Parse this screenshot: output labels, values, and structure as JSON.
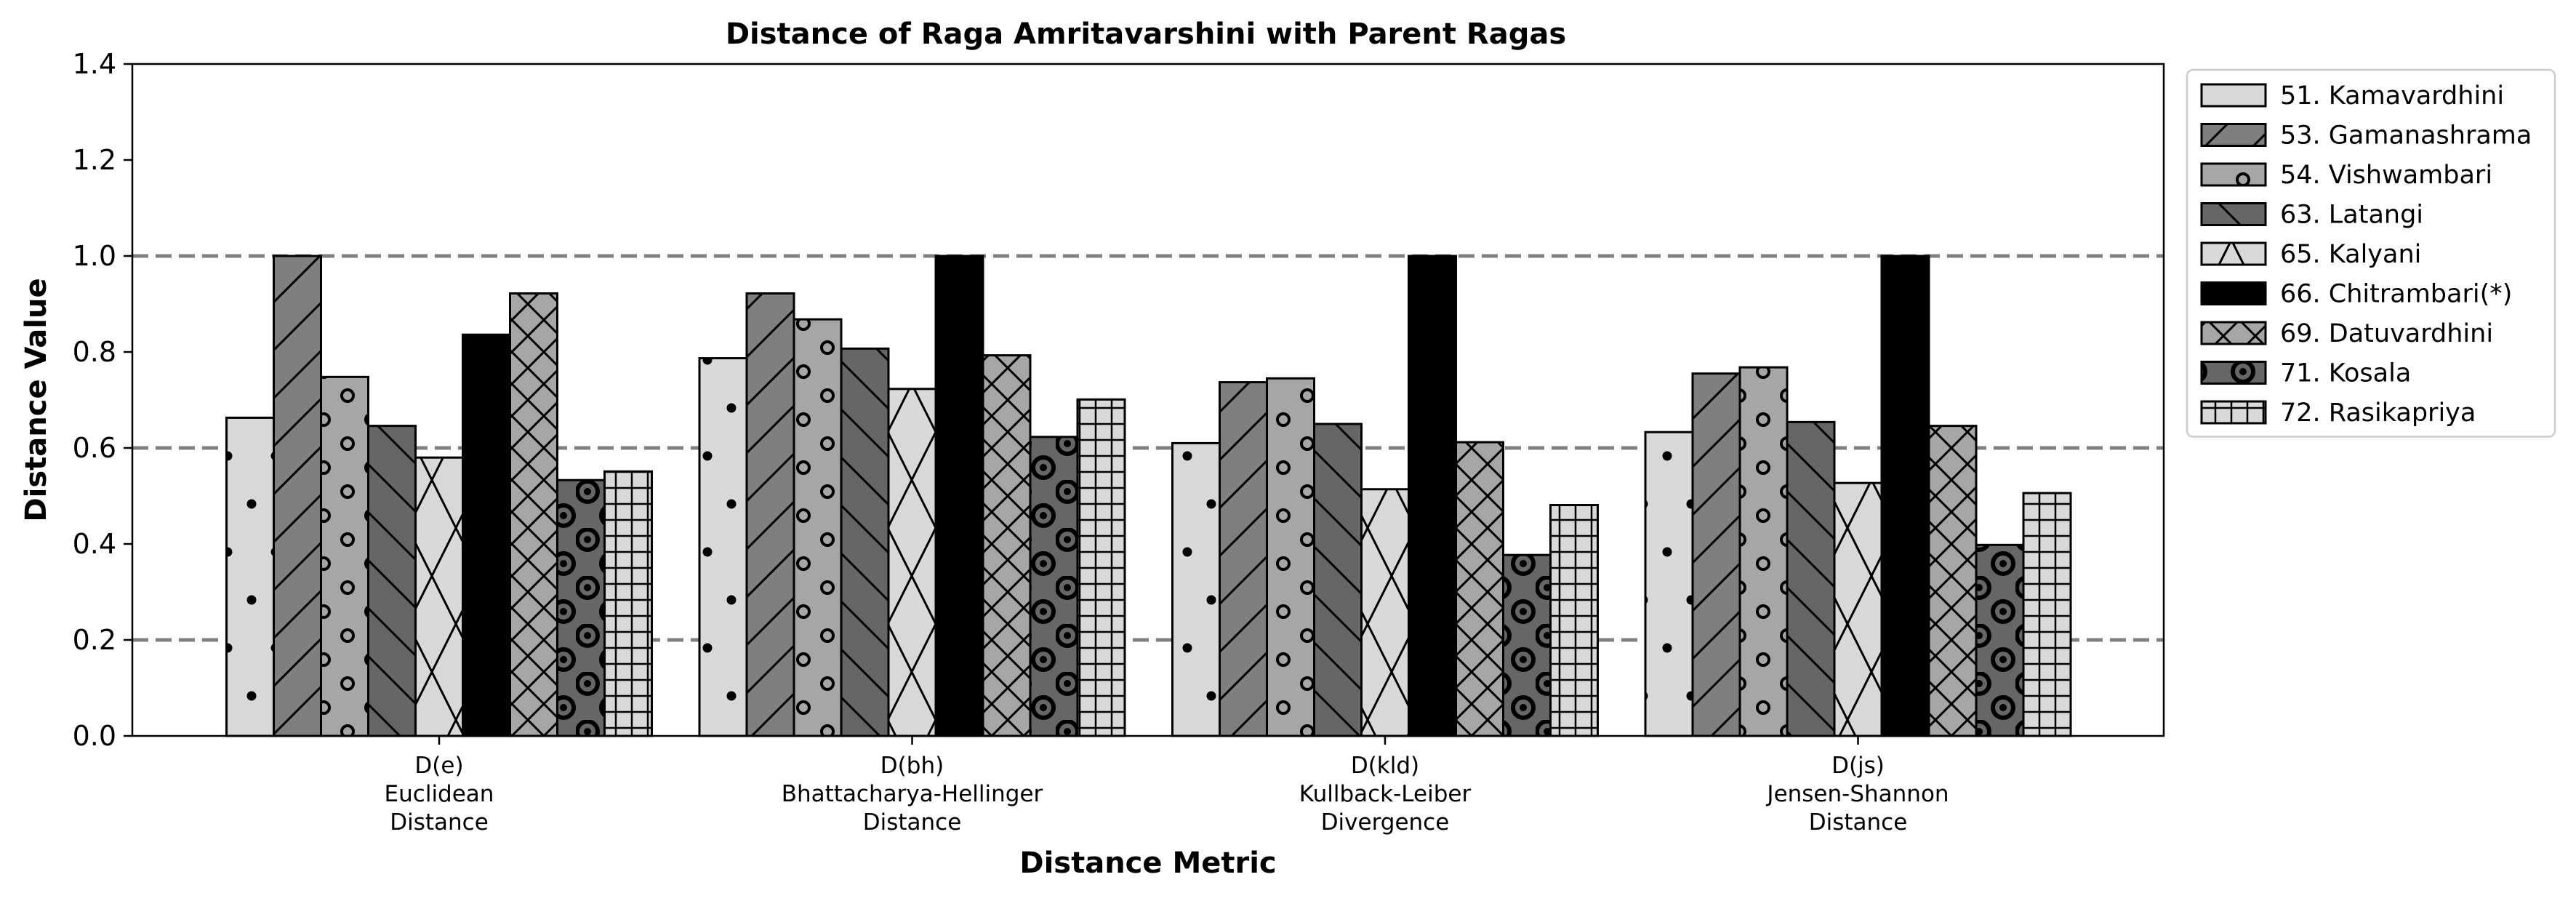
{
  "chart_data": {
    "type": "bar",
    "title": "Distance of Raga Amritavarshini with Parent Ragas",
    "xlabel": "Distance Metric",
    "ylabel": "Distance Value",
    "ylim": [
      0,
      1.4
    ],
    "yticks": [
      "0.0",
      "0.2",
      "0.4",
      "0.6",
      "0.8",
      "1.0",
      "1.2",
      "1.4"
    ],
    "reference_lines": [
      0.2,
      0.6,
      1.0
    ],
    "legend_position": "upper-right-outside",
    "categories": [
      [
        "D(e)",
        "Euclidean",
        "Distance"
      ],
      [
        "D(bh)",
        "Bhattacharya-Hellinger",
        "Distance"
      ],
      [
        "D(kld)",
        "Kullback-Leiber",
        "Divergence"
      ],
      [
        "D(js)",
        "Jensen-Shannon",
        "Distance"
      ]
    ],
    "series": [
      {
        "name": "51. Kamavardhini",
        "fill": "#d9d9d9",
        "hatch": "dots",
        "values": [
          0.663,
          0.787,
          0.61,
          0.633
        ]
      },
      {
        "name": "53. Gamanashrama",
        "fill": "#7f7f7f",
        "hatch": "forward-diagonal",
        "values": [
          1.0,
          0.922,
          0.737,
          0.755
        ]
      },
      {
        "name": "54. Vishwambari",
        "fill": "#a6a6a6",
        "hatch": "circles",
        "values": [
          0.748,
          0.868,
          0.745,
          0.768
        ]
      },
      {
        "name": "63. Latangi",
        "fill": "#666666",
        "hatch": "back-diagonal",
        "values": [
          0.646,
          0.807,
          0.65,
          0.654
        ]
      },
      {
        "name": "65. Kalyani",
        "fill": "#d9d9d9",
        "hatch": "big-x",
        "values": [
          0.58,
          0.723,
          0.514,
          0.527
        ]
      },
      {
        "name": "66. Chitrambari(*)",
        "fill": "#000000",
        "hatch": "none",
        "values": [
          0.836,
          1.0,
          1.0,
          1.0
        ]
      },
      {
        "name": "69. Datuvardhini",
        "fill": "#a6a6a6",
        "hatch": "cross-diagonal",
        "values": [
          0.922,
          0.793,
          0.612,
          0.646
        ]
      },
      {
        "name": "71. Kosala",
        "fill": "#666666",
        "hatch": "rings",
        "values": [
          0.533,
          0.623,
          0.377,
          0.398
        ]
      },
      {
        "name": "72. Rasikapriya",
        "fill": "#d9d9d9",
        "hatch": "grid",
        "values": [
          0.551,
          0.701,
          0.481,
          0.506
        ]
      }
    ]
  }
}
